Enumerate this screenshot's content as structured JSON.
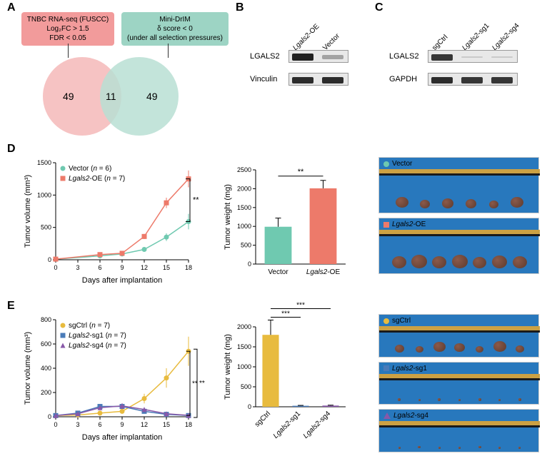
{
  "labels": {
    "A": "A",
    "B": "B",
    "C": "C",
    "D": "D",
    "E": "E"
  },
  "panelA": {
    "left_box": {
      "text": "TNBC RNA-seq (FUSCC)\nLog₂FC > 1.5\nFDR < 0.05",
      "bg": "#f29b9b"
    },
    "right_box": {
      "text": "Mini-DrIM\nδ score < 0\n(under all selection pressures)",
      "bg": "#9dd4c4"
    },
    "venn_left": {
      "count": "49",
      "color": "#f5b8b8"
    },
    "venn_right": {
      "count": "49",
      "color": "#b8dfd3"
    },
    "intersection": "11"
  },
  "panelB": {
    "lanes": [
      "Lgals2-OE",
      "Vector"
    ],
    "rows": [
      "LGALS2",
      "Vinculin"
    ],
    "bands": [
      [
        {
          "intensity": 1.0,
          "h": 10
        },
        {
          "intensity": 0.35,
          "h": 6
        }
      ],
      [
        {
          "intensity": 0.95,
          "h": 9
        },
        {
          "intensity": 0.95,
          "h": 9
        }
      ]
    ]
  },
  "panelC": {
    "lanes": [
      "sgCtrl",
      "Lgals2-sg1",
      "Lgals2-sg4"
    ],
    "rows": [
      "LGALS2",
      "GAPDH"
    ],
    "bands": [
      [
        {
          "intensity": 0.9,
          "h": 9
        },
        {
          "intensity": 0.05,
          "h": 2
        },
        {
          "intensity": 0.05,
          "h": 2
        }
      ],
      [
        {
          "intensity": 0.95,
          "h": 9
        },
        {
          "intensity": 0.9,
          "h": 9
        },
        {
          "intensity": 0.9,
          "h": 9
        }
      ]
    ]
  },
  "panelD": {
    "growth": {
      "xlabel": "Days after implantation",
      "ylabel": "Tumor volume (mm³)",
      "xlim": [
        0,
        18
      ],
      "xtick_step": 3,
      "ylim": [
        0,
        1500
      ],
      "ytick_step": 500,
      "series": [
        {
          "name": "Vector",
          "n": 6,
          "color": "#6fc9b0",
          "marker": "circle",
          "x": [
            0,
            6,
            9,
            12,
            15,
            18
          ],
          "y": [
            10,
            60,
            90,
            160,
            350,
            590
          ],
          "err": [
            0,
            15,
            20,
            25,
            60,
            120
          ]
        },
        {
          "name": "Lgals2-OE",
          "n": 7,
          "color": "#ed7a6a",
          "marker": "square",
          "x": [
            0,
            6,
            9,
            12,
            15,
            18
          ],
          "y": [
            10,
            80,
            100,
            360,
            880,
            1250
          ],
          "err": [
            0,
            20,
            20,
            40,
            80,
            130
          ]
        }
      ],
      "sig": "**"
    },
    "weight": {
      "ylabel": "Tumor weight (mg)",
      "ylim": [
        0,
        2500
      ],
      "ytick_step": 500,
      "bars": [
        {
          "label": "Vector",
          "value": 990,
          "err": 230,
          "color": "#6fc9b0"
        },
        {
          "label": "Lgals2-OE",
          "value": 2010,
          "err": 210,
          "color": "#ed7a6a"
        }
      ],
      "sig": "**",
      "bar_width": 0.6
    },
    "photos": [
      {
        "label": "Vector",
        "color": "#6fc9b0",
        "marker": "circle",
        "n": 6,
        "sizes": [
          18,
          14,
          16,
          15,
          13,
          18
        ]
      },
      {
        "label": "Lgals2-OE",
        "color": "#ed7a6a",
        "marker": "square",
        "n": 7,
        "sizes": [
          20,
          22,
          20,
          22,
          19,
          21,
          20
        ]
      }
    ]
  },
  "panelE": {
    "growth": {
      "xlabel": "Days after implantation",
      "ylabel": "Tumor volume (mm³)",
      "xlim": [
        0,
        18
      ],
      "xtick_step": 3,
      "ylim": [
        0,
        800
      ],
      "ytick_step": 200,
      "series": [
        {
          "name": "sgCtrl",
          "n": 7,
          "color": "#e8bb3e",
          "marker": "circle",
          "x": [
            0,
            3,
            6,
            9,
            12,
            15,
            18
          ],
          "y": [
            10,
            15,
            30,
            45,
            150,
            320,
            540
          ],
          "err": [
            0,
            5,
            8,
            12,
            40,
            80,
            120
          ]
        },
        {
          "name": "Lgals2-sg1",
          "n": 7,
          "color": "#4a7bb8",
          "marker": "square",
          "x": [
            0,
            3,
            6,
            9,
            12,
            15,
            18
          ],
          "y": [
            10,
            30,
            85,
            85,
            45,
            20,
            10
          ],
          "err": [
            0,
            8,
            20,
            20,
            15,
            8,
            5
          ]
        },
        {
          "name": "Lgals2-sg4",
          "n": 7,
          "color": "#8858a8",
          "marker": "triangle",
          "x": [
            0,
            3,
            6,
            9,
            12,
            15,
            18
          ],
          "y": [
            10,
            25,
            75,
            90,
            60,
            25,
            12
          ],
          "err": [
            0,
            8,
            18,
            22,
            18,
            10,
            5
          ]
        }
      ],
      "sig": "**"
    },
    "weight": {
      "ylabel": "Tumor weight (mg)",
      "ylim": [
        0,
        2000
      ],
      "ytick_step": 500,
      "bars": [
        {
          "label": "sgCtrl",
          "value": 1800,
          "err": 370,
          "color": "#e8bb3e"
        },
        {
          "label": "Lgals2-sg1",
          "value": 25,
          "err": 10,
          "color": "#4a7bb8"
        },
        {
          "label": "Lgals2-sg4",
          "value": 30,
          "err": 10,
          "color": "#8858a8"
        }
      ],
      "sig": "***",
      "bar_width": 0.55
    },
    "photos": [
      {
        "label": "sgCtrl",
        "color": "#e8bb3e",
        "marker": "circle",
        "n": 7,
        "sizes": [
          13,
          11,
          17,
          15,
          11,
          18,
          12
        ]
      },
      {
        "label": "Lgals2-sg1",
        "color": "#4a7bb8",
        "marker": "square",
        "n": 7,
        "sizes": [
          4,
          3,
          4,
          3,
          4,
          3,
          4
        ]
      },
      {
        "label": "Lgals2-sg4",
        "color": "#8858a8",
        "marker": "triangle",
        "n": 7,
        "sizes": [
          3,
          4,
          3,
          3,
          4,
          3,
          3
        ]
      }
    ]
  }
}
